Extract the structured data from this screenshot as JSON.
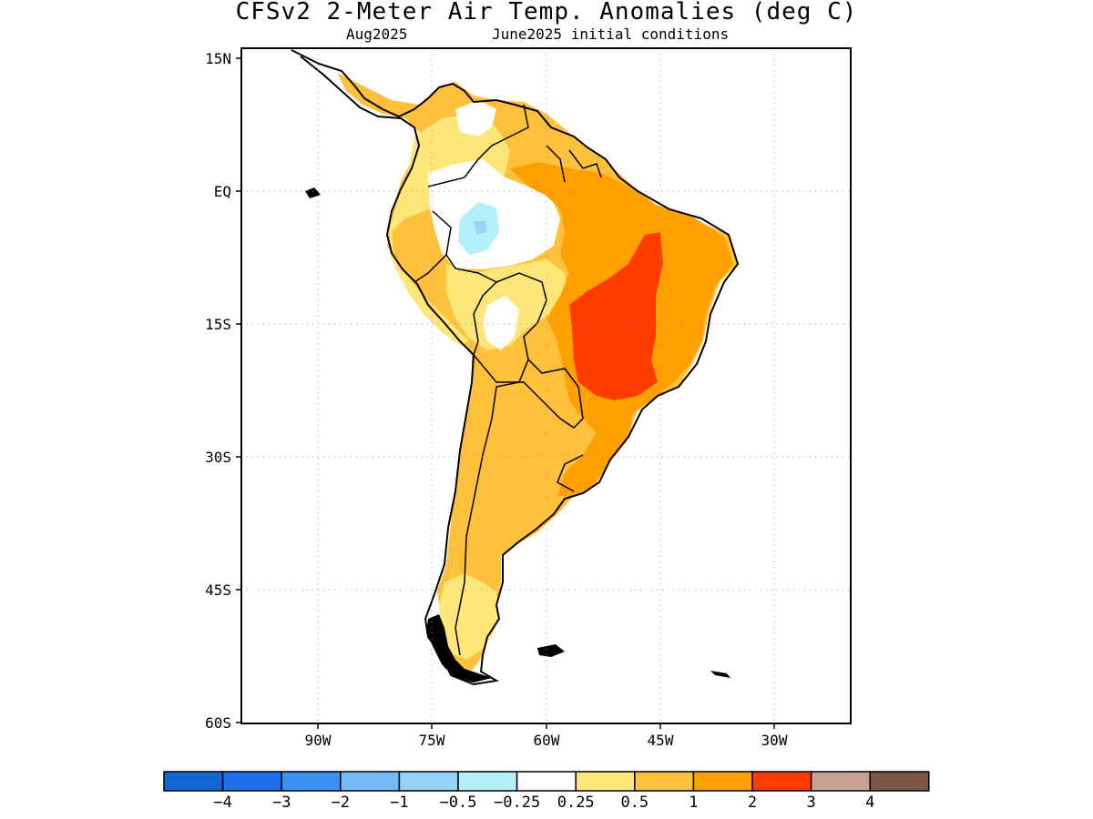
{
  "title": "CFSv2 2-Meter Air Temp. Anomalies (deg C)",
  "subtitle_left": "Aug2025",
  "subtitle_right": "June2025 initial conditions",
  "map": {
    "region": "South America",
    "lon_range": [
      -100,
      -20
    ],
    "lat_range": [
      -60,
      15
    ],
    "lat_ticks": [
      {
        "label": "15N",
        "lat": 15
      },
      {
        "label": "EQ",
        "lat": 0
      },
      {
        "label": "15S",
        "lat": -15
      },
      {
        "label": "30S",
        "lat": -30
      },
      {
        "label": "45S",
        "lat": -45
      },
      {
        "label": "60S",
        "lat": -60
      }
    ],
    "lon_ticks": [
      {
        "label": "90W",
        "lon": -90
      },
      {
        "label": "75W",
        "lon": -75
      },
      {
        "label": "60W",
        "lon": -60
      },
      {
        "label": "45W",
        "lon": -45
      },
      {
        "label": "30W",
        "lon": -30
      }
    ],
    "gridlines": true,
    "gridline_style": "dotted"
  },
  "colorbar": {
    "colors": [
      "#1464d2",
      "#1e6eeb",
      "#3c91f0",
      "#78b9fa",
      "#96d2fa",
      "#b4f0fa",
      "#ffffff",
      "#ffe678",
      "#ffc03c",
      "#ffa000",
      "#ff3c00",
      "#c8a096",
      "#7d5546"
    ],
    "labels": [
      "−4",
      "−3",
      "−2",
      "−1",
      "−0.5",
      "−0.25",
      "0.25",
      "0.5",
      "1",
      "2",
      "3",
      "4"
    ]
  }
}
